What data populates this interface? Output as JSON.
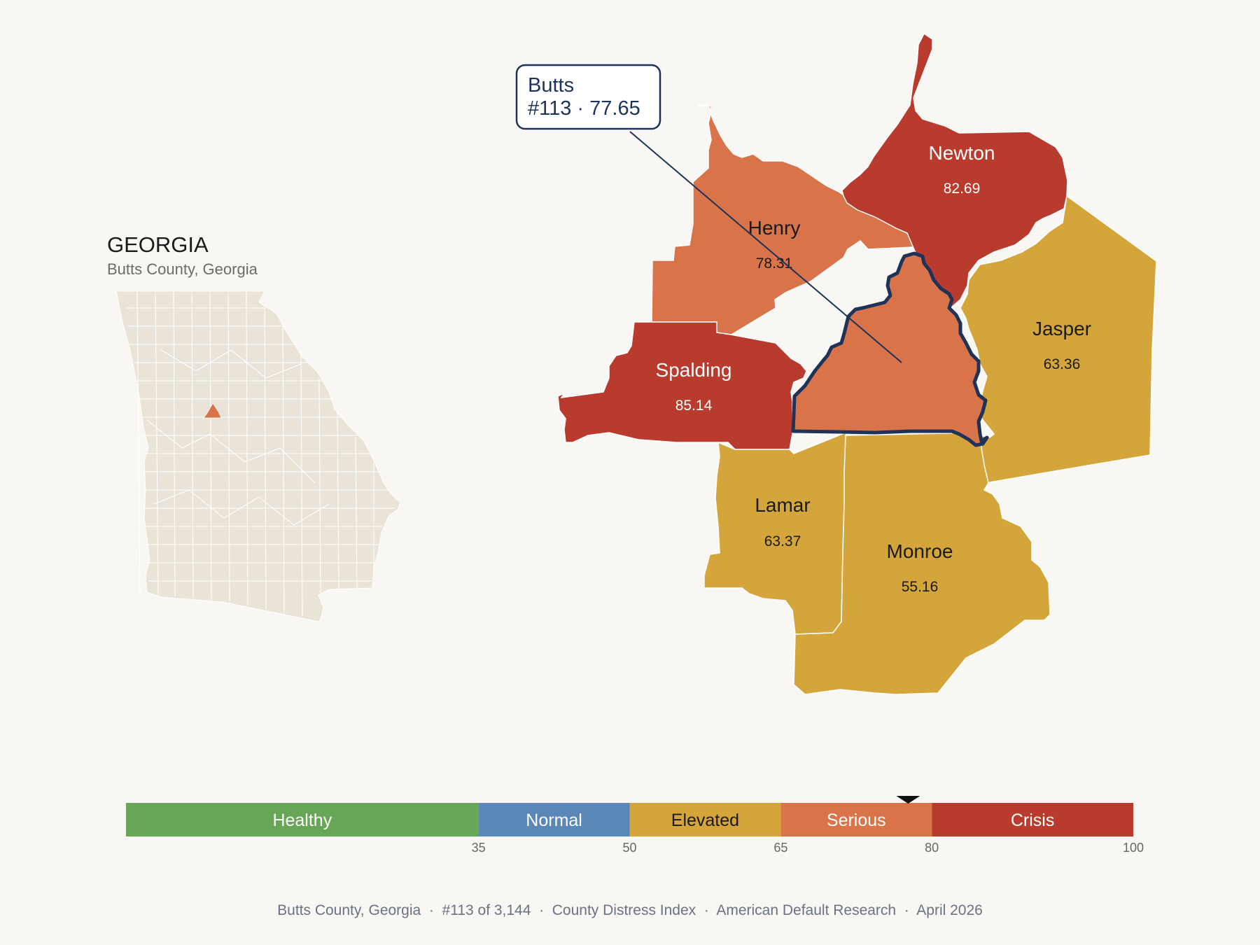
{
  "inset": {
    "state_title": "GEORGIA",
    "subtitle": "Butts County, Georgia",
    "base_color": "#e9e3d8",
    "highlight_color": "#d9734a"
  },
  "callout": {
    "name": "Butts",
    "detail": "#113 · 77.65"
  },
  "counties": {
    "henry": {
      "name": "Henry",
      "value": "78.31",
      "color": "#d9734a"
    },
    "newton": {
      "name": "Newton",
      "value": "82.69",
      "color": "#b93b2d"
    },
    "jasper": {
      "name": "Jasper",
      "value": "63.36",
      "color": "#d4a53b"
    },
    "spalding": {
      "name": "Spalding",
      "value": "85.14",
      "color": "#b93b2d"
    },
    "lamar": {
      "name": "Lamar",
      "value": "63.37",
      "color": "#d4a53b"
    },
    "monroe": {
      "name": "Monroe",
      "value": "55.16",
      "color": "#d4a53b"
    },
    "butts": {
      "name": "Butts",
      "value": "77.65",
      "color": "#d9734a"
    }
  },
  "scale": {
    "bands": [
      {
        "label": "Healthy",
        "color": "#67a656",
        "min": 0,
        "max": 35
      },
      {
        "label": "Normal",
        "color": "#5b87b8",
        "min": 35,
        "max": 50
      },
      {
        "label": "Elevated",
        "color": "#d4a53b",
        "min": 50,
        "max": 65
      },
      {
        "label": "Serious",
        "color": "#d9734a",
        "min": 65,
        "max": 80
      },
      {
        "label": "Crisis",
        "color": "#b93b2d",
        "min": 80,
        "max": 100
      }
    ],
    "ticks": [
      "35",
      "50",
      "65",
      "80",
      "100"
    ],
    "marker_value": 77.65
  },
  "footer": "Butts County, Georgia  ·  #113 of 3,144  ·  County Distress Index  ·  American Default Research  ·  April 2026"
}
